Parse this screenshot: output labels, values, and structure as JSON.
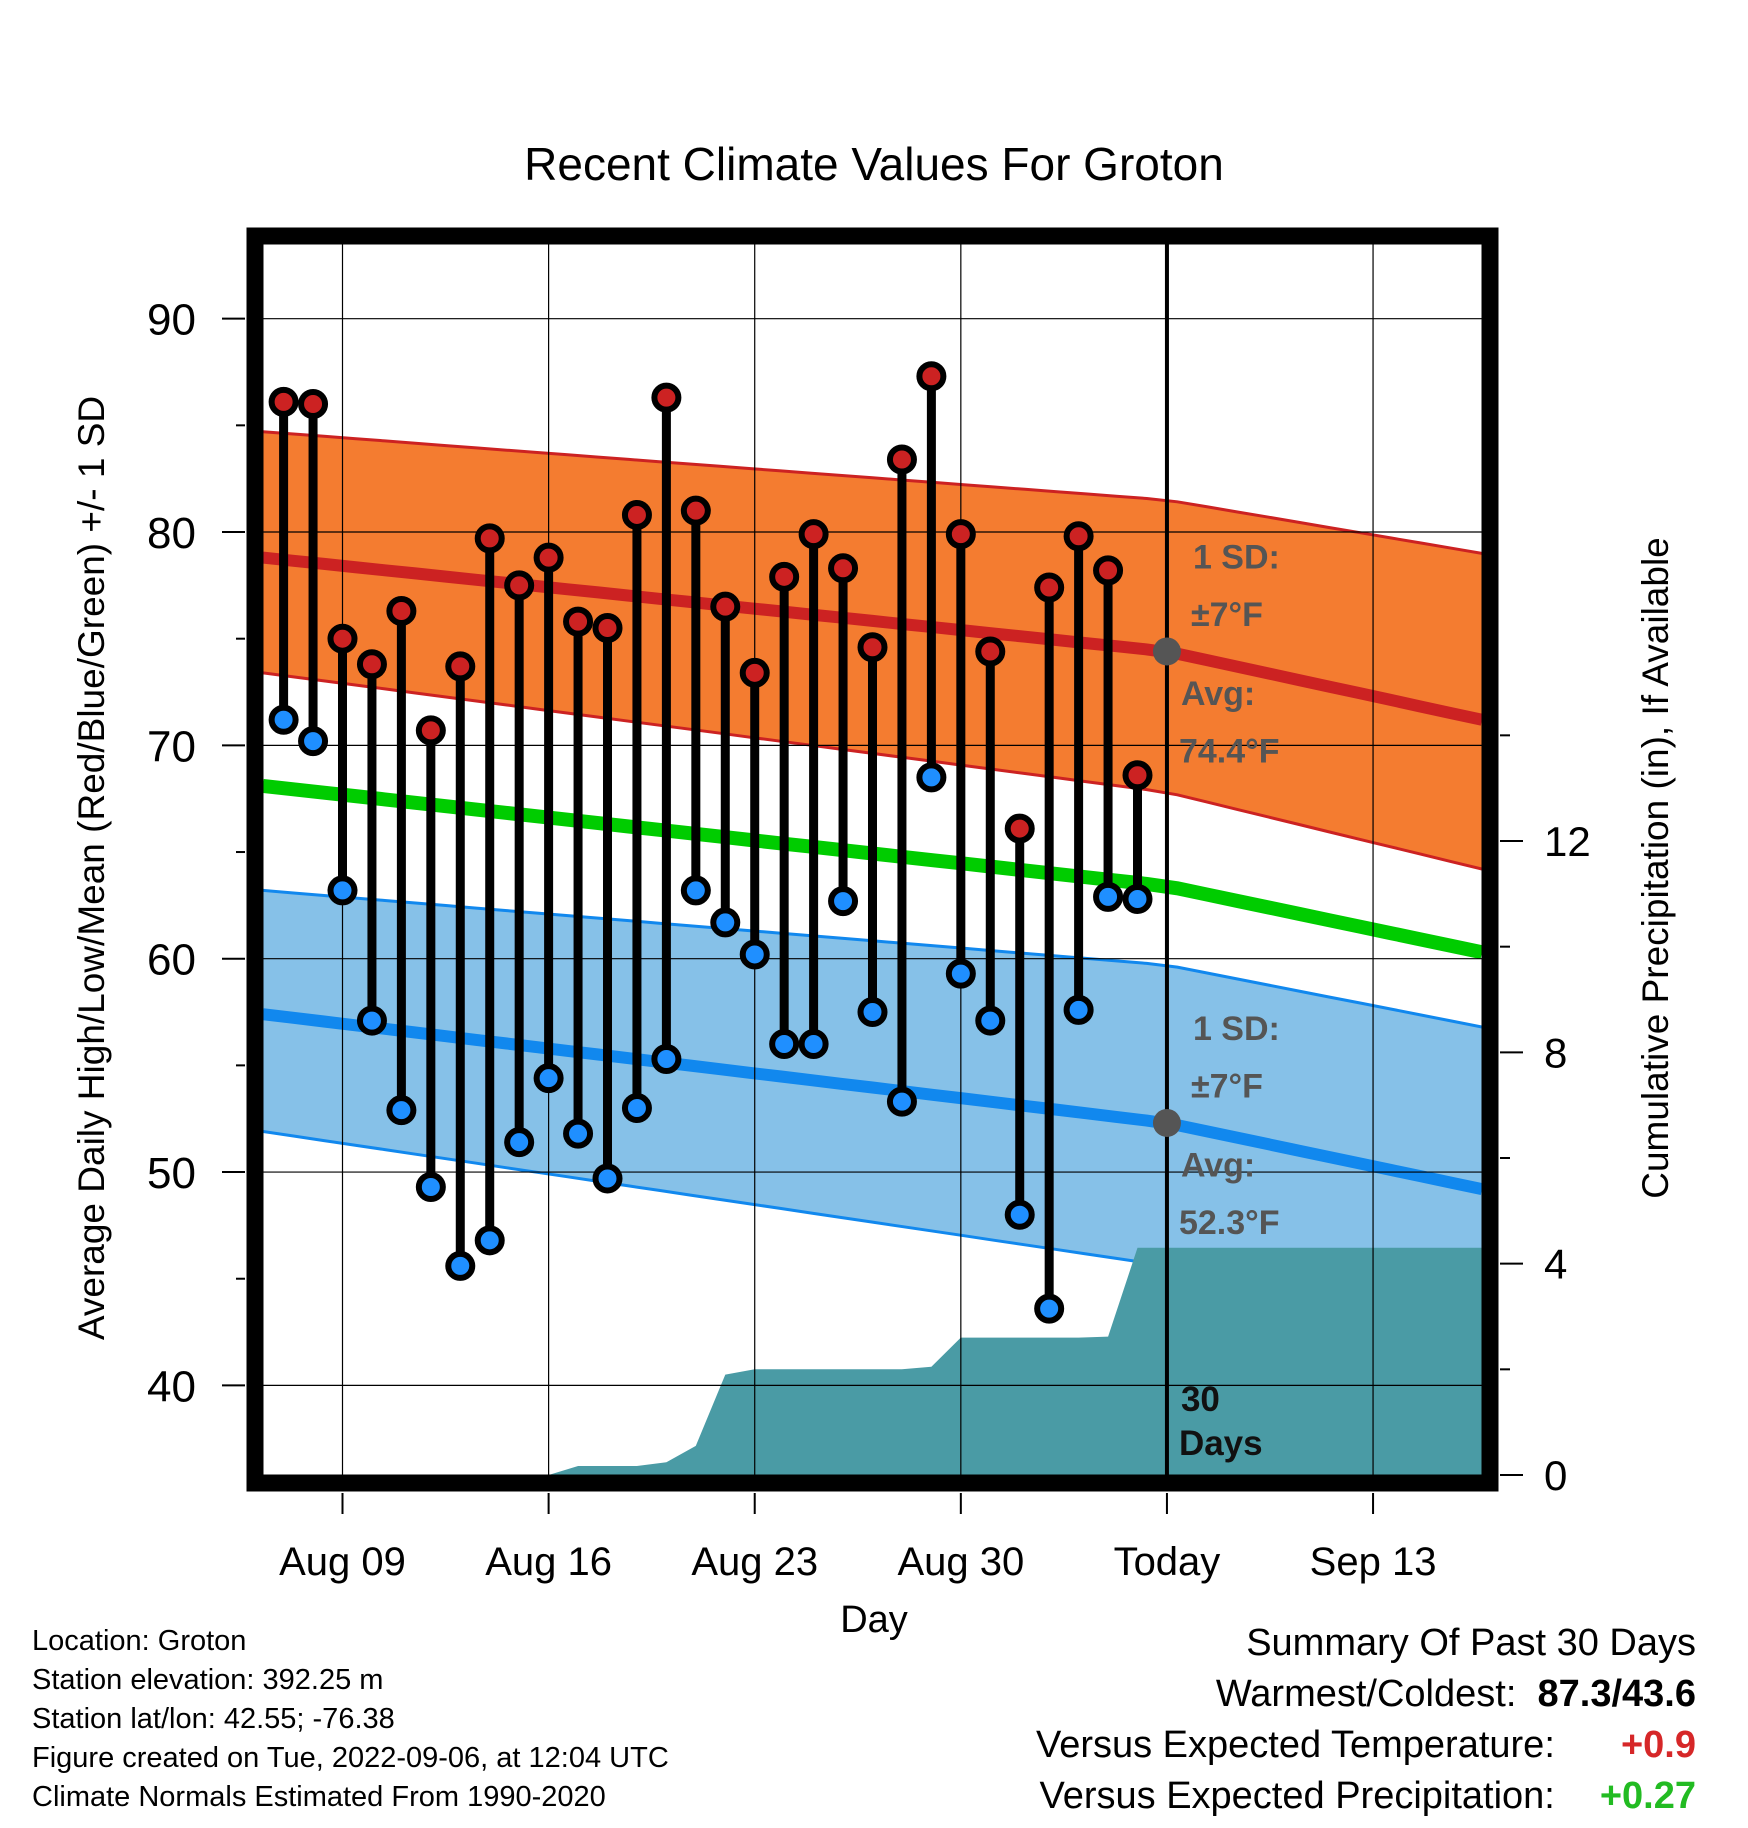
{
  "chart_data": {
    "type": "line",
    "title": "Recent Climate Values For Groton",
    "xlabel": "Day",
    "ylabel": "Average Daily High/Low/Mean (Red/Blue/Green) +/- 1 SD",
    "y2label": "Cumulative Precipitation (in), If Available",
    "ylim": [
      35.8,
      93.5
    ],
    "y2lim": [
      0,
      23.3
    ],
    "yticks": [
      "40",
      "50",
      "60",
      "70",
      "80",
      "90"
    ],
    "y2ticks": [
      "0",
      "4",
      "8",
      "12"
    ],
    "xlim": [
      6.3,
      47.7
    ],
    "xtick_days": [
      9,
      16,
      23,
      30,
      37,
      44
    ],
    "xticks": [
      "Aug 09",
      "Aug 16",
      "Aug 23",
      "Aug 30",
      "Today",
      "Sep 13"
    ],
    "grid": true,
    "today_day": 37,
    "period_label": "30 Days",
    "days": [
      7,
      8,
      9,
      10,
      11,
      12,
      13,
      14,
      15,
      16,
      17,
      18,
      19,
      20,
      21,
      22,
      23,
      24,
      25,
      26,
      27,
      28,
      29,
      30,
      31,
      32,
      33,
      34,
      35,
      36
    ],
    "highs": [
      86.1,
      86.0,
      75.0,
      73.8,
      76.3,
      70.7,
      73.7,
      79.7,
      77.5,
      78.8,
      75.8,
      75.5,
      80.8,
      86.3,
      81.0,
      76.5,
      73.4,
      77.9,
      79.9,
      78.3,
      74.6,
      83.4,
      87.3,
      79.9,
      74.4,
      66.1,
      77.4,
      79.8,
      78.2,
      68.6
    ],
    "lows": [
      71.2,
      70.2,
      63.2,
      57.1,
      52.9,
      49.3,
      45.6,
      46.8,
      51.4,
      54.4,
      51.8,
      49.7,
      53.0,
      55.3,
      63.2,
      61.7,
      60.2,
      56.0,
      56.0,
      62.7,
      57.5,
      53.3,
      68.5,
      59.3,
      57.1,
      48.0,
      43.6,
      57.6,
      62.9,
      62.8
    ],
    "normal_high": {
      "days": [
        6.3,
        47.7
      ],
      "at_start": 78.8,
      "at_today": 74.4,
      "at_end": 71.2
    },
    "normal_low": {
      "days": [
        6.3,
        47.7
      ],
      "at_start": 57.4,
      "at_today": 52.3,
      "at_end": 49.2
    },
    "normal_mean": {
      "days": [
        6.3,
        47.7
      ],
      "at_start": 68.1,
      "at_today": 63.4,
      "at_end": 60.3
    },
    "band_high": {
      "upper_start": 84.7,
      "upper_today": 81.5,
      "upper_end": 79.0,
      "lower_start": 73.4,
      "lower_today": 67.8,
      "lower_end": 64.2
    },
    "band_low": {
      "upper_start": 63.2,
      "upper_today": 59.7,
      "upper_end": 56.8,
      "lower_start": 51.9,
      "lower_today": 45.6,
      "lower_end": 42.0
    },
    "high_annotation": {
      "sd": "1 SD:",
      "sd_value": "±7°F",
      "avg": "Avg:",
      "avg_value": "74.4°F"
    },
    "low_annotation": {
      "sd": "1 SD:",
      "sd_value": "±7°F",
      "avg": "Avg:",
      "avg_value": "52.3°F"
    },
    "precip": {
      "days": [
        6.3,
        7,
        8,
        9,
        10,
        11,
        12,
        13,
        14,
        15,
        16,
        17,
        18,
        19,
        20,
        21,
        22,
        23,
        24,
        25,
        26,
        27,
        28,
        29,
        30,
        31,
        32,
        33,
        34,
        35,
        36,
        37,
        47.7
      ],
      "values": [
        0.0,
        0.0,
        0.0,
        0.0,
        0.0,
        0.0,
        0.0,
        0.0,
        0.0,
        0.0,
        0.0,
        0.17,
        0.17,
        0.17,
        0.24,
        0.55,
        1.9,
        2.0,
        2.0,
        2.0,
        2.0,
        2.0,
        2.0,
        2.05,
        2.6,
        2.6,
        2.6,
        2.6,
        2.6,
        2.62,
        4.3,
        4.3,
        4.3
      ]
    },
    "colors": {
      "high": "#cc2222",
      "low": "#1188ee",
      "mean": "#00cc00",
      "band_high": "#f47c30",
      "band_low": "#86c1e8",
      "precip": "#4a9ba5",
      "marker_high": "#cc2222",
      "marker_low": "#1f8fff"
    }
  },
  "location": "Location: Groton",
  "elevation": "Station elevation: 392.25 m",
  "latlon": "Station lat/lon: 42.55; -76.38",
  "created": "Figure created on Tue, 2022-09-06, at 12:04 UTC",
  "normals": "Climate Normals Estimated From 1990-2020",
  "summary": {
    "heading": "Summary Of Past 30 Days",
    "warmest_label": "Warmest/Coldest:",
    "warmest_value": "87.3/43.6",
    "temp_label": "Versus Expected Temperature:",
    "temp_value": "+0.9",
    "precip_label": "Versus Expected Precipitation:",
    "precip_value": "+0.27"
  }
}
